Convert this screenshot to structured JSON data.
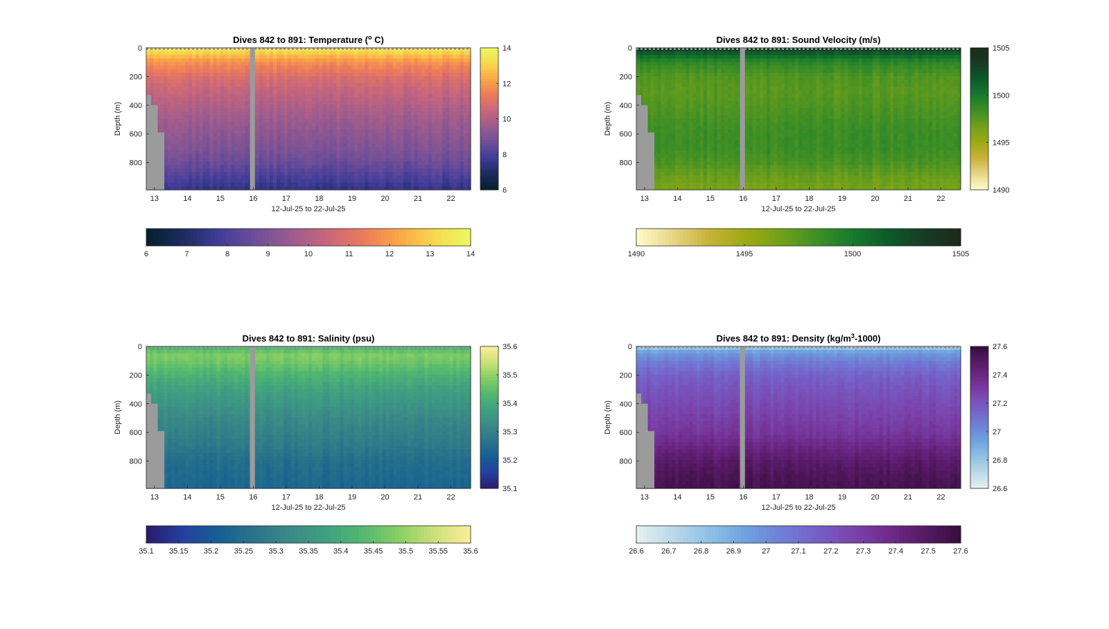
{
  "colors": {
    "background": "#ffffff",
    "nodata": "#9b9b9b",
    "thermal": [
      "#04202b",
      "#1c2a5e",
      "#3f3c98",
      "#6e4e98",
      "#9a5b8e",
      "#c7667c",
      "#ec7a5b",
      "#fba646",
      "#f7d84f",
      "#e9fa62"
    ],
    "speed": [
      "#fffdcd",
      "#e7d686",
      "#c9b23a",
      "#9eaa12",
      "#73a11a",
      "#3f8f25",
      "#167a2c",
      "#0e5a2a",
      "#173b24",
      "#1e2a1a"
    ],
    "haline": [
      "#2a1a6a",
      "#263fa0",
      "#155f93",
      "#2a7489",
      "#3a8a87",
      "#40a080",
      "#52b870",
      "#87cf63",
      "#cde07a",
      "#fbee9a"
    ],
    "dense": [
      "#e6f1f1",
      "#bcd9e8",
      "#8fc1e6",
      "#6ea3e0",
      "#6f80d6",
      "#7560c8",
      "#7a44ac",
      "#6f2a8c",
      "#571a66",
      "#360d3a"
    ]
  },
  "panels": [
    {
      "title": "Dives 842 to 891: Temperature (",
      "title_sup": "o",
      "title_rest": " C)",
      "ylabel": "Depth (m)",
      "xlabel": "12-Jul-25 to 22-Jul-25",
      "colormap": "thermal",
      "xticks": [
        "13",
        "14",
        "15",
        "16",
        "17",
        "18",
        "19",
        "20",
        "21",
        "22"
      ],
      "yticks": [
        "0",
        "200",
        "400",
        "600",
        "800"
      ],
      "cbar_ticks": [
        "6",
        "8",
        "10",
        "12",
        "14"
      ],
      "hbar_ticks": [
        "6",
        "7",
        "8",
        "9",
        "10",
        "11",
        "12",
        "13",
        "14"
      ]
    },
    {
      "title": "Dives 842 to 891: Sound Velocity (m/s)",
      "title_sup": "",
      "title_rest": "",
      "ylabel": "Depth (m)",
      "xlabel": "12-Jul-25 to 22-Jul-25",
      "colormap": "speed",
      "xticks": [
        "13",
        "14",
        "15",
        "16",
        "17",
        "18",
        "19",
        "20",
        "21",
        "22"
      ],
      "yticks": [
        "0",
        "200",
        "400",
        "600",
        "800"
      ],
      "cbar_ticks": [
        "1490",
        "1495",
        "1500",
        "1505"
      ],
      "hbar_ticks": [
        "1490",
        "1495",
        "1500",
        "1505"
      ]
    },
    {
      "title": "Dives 842 to 891: Salinity (psu)",
      "title_sup": "",
      "title_rest": "",
      "ylabel": "Depth (m)",
      "xlabel": "12-Jul-25 to 22-Jul-25",
      "colormap": "haline",
      "xticks": [
        "13",
        "14",
        "15",
        "16",
        "17",
        "18",
        "19",
        "20",
        "21",
        "22"
      ],
      "yticks": [
        "0",
        "200",
        "400",
        "600",
        "800"
      ],
      "cbar_ticks": [
        "35.1",
        "35.2",
        "35.3",
        "35.4",
        "35.5",
        "35.6"
      ],
      "hbar_ticks": [
        "35.1",
        "35.15",
        "35.2",
        "35.25",
        "35.3",
        "35.35",
        "35.4",
        "35.45",
        "35.5",
        "35.55",
        "35.6"
      ]
    },
    {
      "title": "Dives 842 to 891: Density (kg/m",
      "title_sup": "3",
      "title_rest": "-1000)",
      "ylabel": "Depth (m)",
      "xlabel": "12-Jul-25 to 22-Jul-25",
      "colormap": "dense",
      "xticks": [
        "13",
        "14",
        "15",
        "16",
        "17",
        "18",
        "19",
        "20",
        "21",
        "22"
      ],
      "yticks": [
        "0",
        "200",
        "400",
        "600",
        "800"
      ],
      "cbar_ticks": [
        "26.6",
        "26.8",
        "27",
        "27.2",
        "27.4",
        "27.6"
      ],
      "hbar_ticks": [
        "26.6",
        "26.7",
        "26.8",
        "26.9",
        "27",
        "27.1",
        "27.2",
        "27.3",
        "27.4",
        "27.5",
        "27.6"
      ]
    }
  ],
  "chart_data": [
    {
      "type": "heatmap",
      "title": "Dives 842 to 891: Temperature (° C)",
      "xlabel": "12-Jul-25 to 22-Jul-25",
      "ylabel": "Depth (m)",
      "x_range_days": [
        12.75,
        22.6
      ],
      "y_range_m": [
        0,
        990
      ],
      "y_reversed": true,
      "color_range": [
        6,
        14
      ],
      "profile_depth_m": [
        0,
        100,
        200,
        300,
        400,
        500,
        600,
        700,
        800,
        900,
        980
      ],
      "profile_values": [
        13.6,
        11.8,
        10.9,
        10.4,
        10.0,
        9.6,
        9.3,
        9.0,
        8.6,
        8.0,
        7.5
      ],
      "no_data_days": [
        15.9,
        16.05
      ]
    },
    {
      "type": "heatmap",
      "title": "Dives 842 to 891: Sound Velocity (m/s)",
      "xlabel": "12-Jul-25 to 22-Jul-25",
      "ylabel": "Depth (m)",
      "x_range_days": [
        12.75,
        22.6
      ],
      "y_range_m": [
        0,
        990
      ],
      "y_reversed": true,
      "color_range": [
        1490,
        1505
      ],
      "profile_depth_m": [
        0,
        40,
        100,
        200,
        300,
        400,
        500,
        600,
        700,
        800,
        900,
        980
      ],
      "profile_values": [
        1503.5,
        1501.5,
        1499.0,
        1497.8,
        1497.5,
        1497.8,
        1498.2,
        1498.5,
        1498.5,
        1498.0,
        1497.0,
        1496.5
      ],
      "no_data_days": [
        15.9,
        16.05
      ]
    },
    {
      "type": "heatmap",
      "title": "Dives 842 to 891: Salinity (psu)",
      "xlabel": "12-Jul-25 to 22-Jul-25",
      "ylabel": "Depth (m)",
      "x_range_days": [
        12.75,
        22.6
      ],
      "y_range_m": [
        0,
        990
      ],
      "y_reversed": true,
      "color_range": [
        35.1,
        35.6
      ],
      "profile_depth_m": [
        0,
        60,
        100,
        200,
        300,
        400,
        500,
        600,
        700,
        800,
        900,
        980
      ],
      "profile_values": [
        35.42,
        35.48,
        35.47,
        35.42,
        35.38,
        35.35,
        35.32,
        35.3,
        35.28,
        35.25,
        35.24,
        35.23
      ],
      "no_data_days": [
        15.9,
        16.05
      ]
    },
    {
      "type": "heatmap",
      "title": "Dives 842 to 891: Density (kg/m³-1000)",
      "xlabel": "12-Jul-25 to 22-Jul-25",
      "ylabel": "Depth (m)",
      "x_range_days": [
        12.75,
        22.6
      ],
      "y_range_m": [
        0,
        990
      ],
      "y_reversed": true,
      "color_range": [
        26.6,
        27.6
      ],
      "profile_depth_m": [
        0,
        40,
        100,
        200,
        300,
        400,
        500,
        600,
        700,
        800,
        900,
        980
      ],
      "profile_values": [
        26.75,
        26.95,
        27.05,
        27.15,
        27.2,
        27.24,
        27.28,
        27.32,
        27.4,
        27.48,
        27.52,
        27.55
      ],
      "no_data_days": [
        15.9,
        16.05
      ]
    }
  ]
}
